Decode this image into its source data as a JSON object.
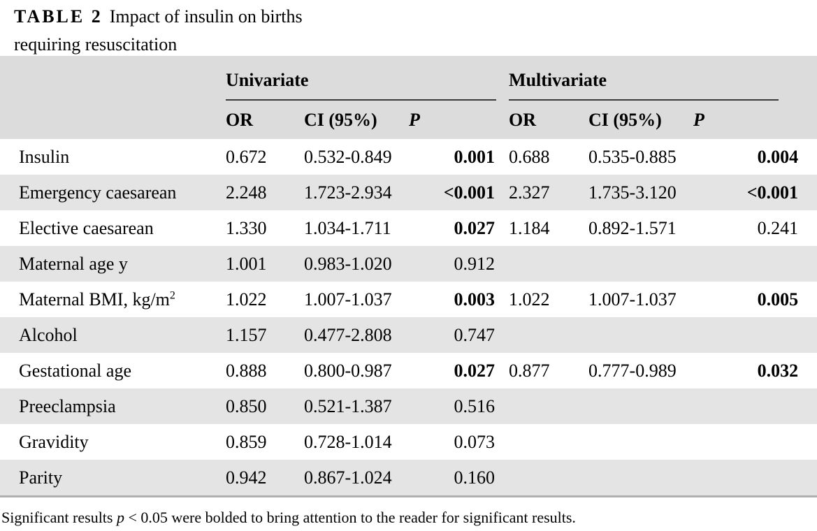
{
  "caption": {
    "label": "TABLE 2",
    "line1": "Impact of insulin on births",
    "line2": "requiring resuscitation"
  },
  "header": {
    "group_univariate": "Univariate",
    "group_multivariate": "Multivariate",
    "col_or": "OR",
    "col_ci": "CI (95%)",
    "col_p": "P"
  },
  "rows": [
    {
      "name": "Insulin",
      "sup": "",
      "uni_or": "0.672",
      "uni_ci": "0.532-0.849",
      "uni_p": "0.001",
      "uni_sig": true,
      "multi_or": "0.688",
      "multi_ci": "0.535-0.885",
      "multi_p": "0.004",
      "multi_sig": true
    },
    {
      "name": "Emergency caesarean",
      "sup": "",
      "uni_or": "2.248",
      "uni_ci": "1.723-2.934",
      "uni_p": "<0.001",
      "uni_sig": true,
      "multi_or": "2.327",
      "multi_ci": "1.735-3.120",
      "multi_p": "<0.001",
      "multi_sig": true
    },
    {
      "name": "Elective caesarean",
      "sup": "",
      "uni_or": "1.330",
      "uni_ci": "1.034-1.711",
      "uni_p": "0.027",
      "uni_sig": true,
      "multi_or": "1.184",
      "multi_ci": "0.892-1.571",
      "multi_p": "0.241",
      "multi_sig": false
    },
    {
      "name": "Maternal age y",
      "sup": "",
      "uni_or": "1.001",
      "uni_ci": "0.983-1.020",
      "uni_p": "0.912",
      "uni_sig": false,
      "multi_or": "",
      "multi_ci": "",
      "multi_p": "",
      "multi_sig": false
    },
    {
      "name": "Maternal BMI, kg/m",
      "sup": "2",
      "uni_or": "1.022",
      "uni_ci": "1.007-1.037",
      "uni_p": "0.003",
      "uni_sig": true,
      "multi_or": "1.022",
      "multi_ci": "1.007-1.037",
      "multi_p": "0.005",
      "multi_sig": true
    },
    {
      "name": "Alcohol",
      "sup": "",
      "uni_or": "1.157",
      "uni_ci": "0.477-2.808",
      "uni_p": "0.747",
      "uni_sig": false,
      "multi_or": "",
      "multi_ci": "",
      "multi_p": "",
      "multi_sig": false
    },
    {
      "name": "Gestational age",
      "sup": "",
      "uni_or": "0.888",
      "uni_ci": "0.800-0.987",
      "uni_p": "0.027",
      "uni_sig": true,
      "multi_or": "0.877",
      "multi_ci": "0.777-0.989",
      "multi_p": "0.032",
      "multi_sig": true
    },
    {
      "name": "Preeclampsia",
      "sup": "",
      "uni_or": "0.850",
      "uni_ci": "0.521-1.387",
      "uni_p": "0.516",
      "uni_sig": false,
      "multi_or": "",
      "multi_ci": "",
      "multi_p": "",
      "multi_sig": false
    },
    {
      "name": "Gravidity",
      "sup": "",
      "uni_or": "0.859",
      "uni_ci": "0.728-1.014",
      "uni_p": "0.073",
      "uni_sig": false,
      "multi_or": "",
      "multi_ci": "",
      "multi_p": "",
      "multi_sig": false
    },
    {
      "name": "Parity",
      "sup": "",
      "uni_or": "0.942",
      "uni_ci": "0.867-1.024",
      "uni_p": "0.160",
      "uni_sig": false,
      "multi_or": "",
      "multi_ci": "",
      "multi_p": "",
      "multi_sig": false
    }
  ],
  "footnote": {
    "before": "Significant results ",
    "pvar": "p",
    "after": " < 0.05 were bolded to bring attention to the reader for significant results."
  }
}
